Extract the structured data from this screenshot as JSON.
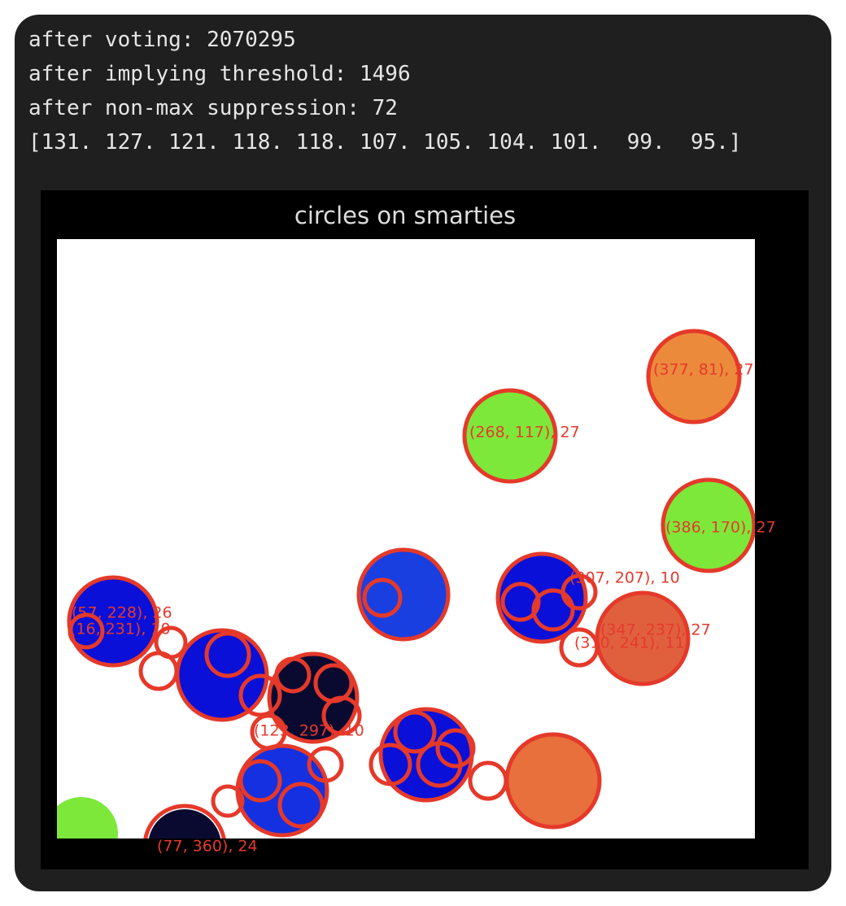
{
  "output": {
    "lines": [
      "after voting: 2070295",
      "after implying threshold: 1496",
      "after non-max suppression: 72",
      "[131. 127. 121. 118. 118. 107. 105. 104. 101.  99.  95.]"
    ]
  },
  "figure": {
    "title": "circles on smarties",
    "labels": [
      "(377, 81), 27",
      "(268, 117), 27",
      "(386, 170), 27",
      "(307, 207), 10",
      "(347, 237), 27",
      "(310, 241), 11",
      "(57, 228), 26",
      "(16, 231), 10",
      "(123, 297), 10",
      "(77, 360), 24"
    ]
  }
}
